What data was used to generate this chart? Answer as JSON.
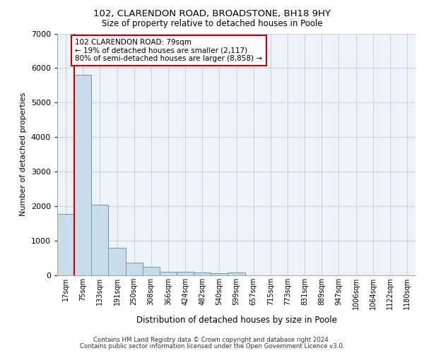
{
  "title1": "102, CLARENDON ROAD, BROADSTONE, BH18 9HY",
  "title2": "Size of property relative to detached houses in Poole",
  "xlabel": "Distribution of detached houses by size in Poole",
  "ylabel": "Number of detached properties",
  "annotation_line1": "102 CLARENDON ROAD: 79sqm",
  "annotation_line2": "← 19% of detached houses are smaller (2,117)",
  "annotation_line3": "80% of semi-detached houses are larger (8,858) →",
  "footer1": "Contains HM Land Registry data © Crown copyright and database right 2024.",
  "footer2": "Contains public sector information licensed under the Open Government Licence v3.0.",
  "bin_labels": [
    "17sqm",
    "75sqm",
    "133sqm",
    "191sqm",
    "250sqm",
    "308sqm",
    "366sqm",
    "424sqm",
    "482sqm",
    "540sqm",
    "599sqm",
    "657sqm",
    "715sqm",
    "773sqm",
    "831sqm",
    "889sqm",
    "947sqm",
    "1006sqm",
    "1064sqm",
    "1122sqm",
    "1180sqm"
  ],
  "bar_heights": [
    1780,
    5800,
    2050,
    800,
    370,
    240,
    100,
    95,
    80,
    60,
    80,
    0,
    0,
    0,
    0,
    0,
    0,
    0,
    0,
    0,
    0
  ],
  "bar_color": "#c9dcea",
  "bar_edge_color": "#6699bb",
  "property_line_color": "#cc0000",
  "annotation_box_color": "#cc0000",
  "ylim": [
    0,
    7000
  ],
  "yticks": [
    0,
    1000,
    2000,
    3000,
    4000,
    5000,
    6000,
    7000
  ],
  "grid_color": "#c5d5e5",
  "bg_color": "#eef3f8"
}
